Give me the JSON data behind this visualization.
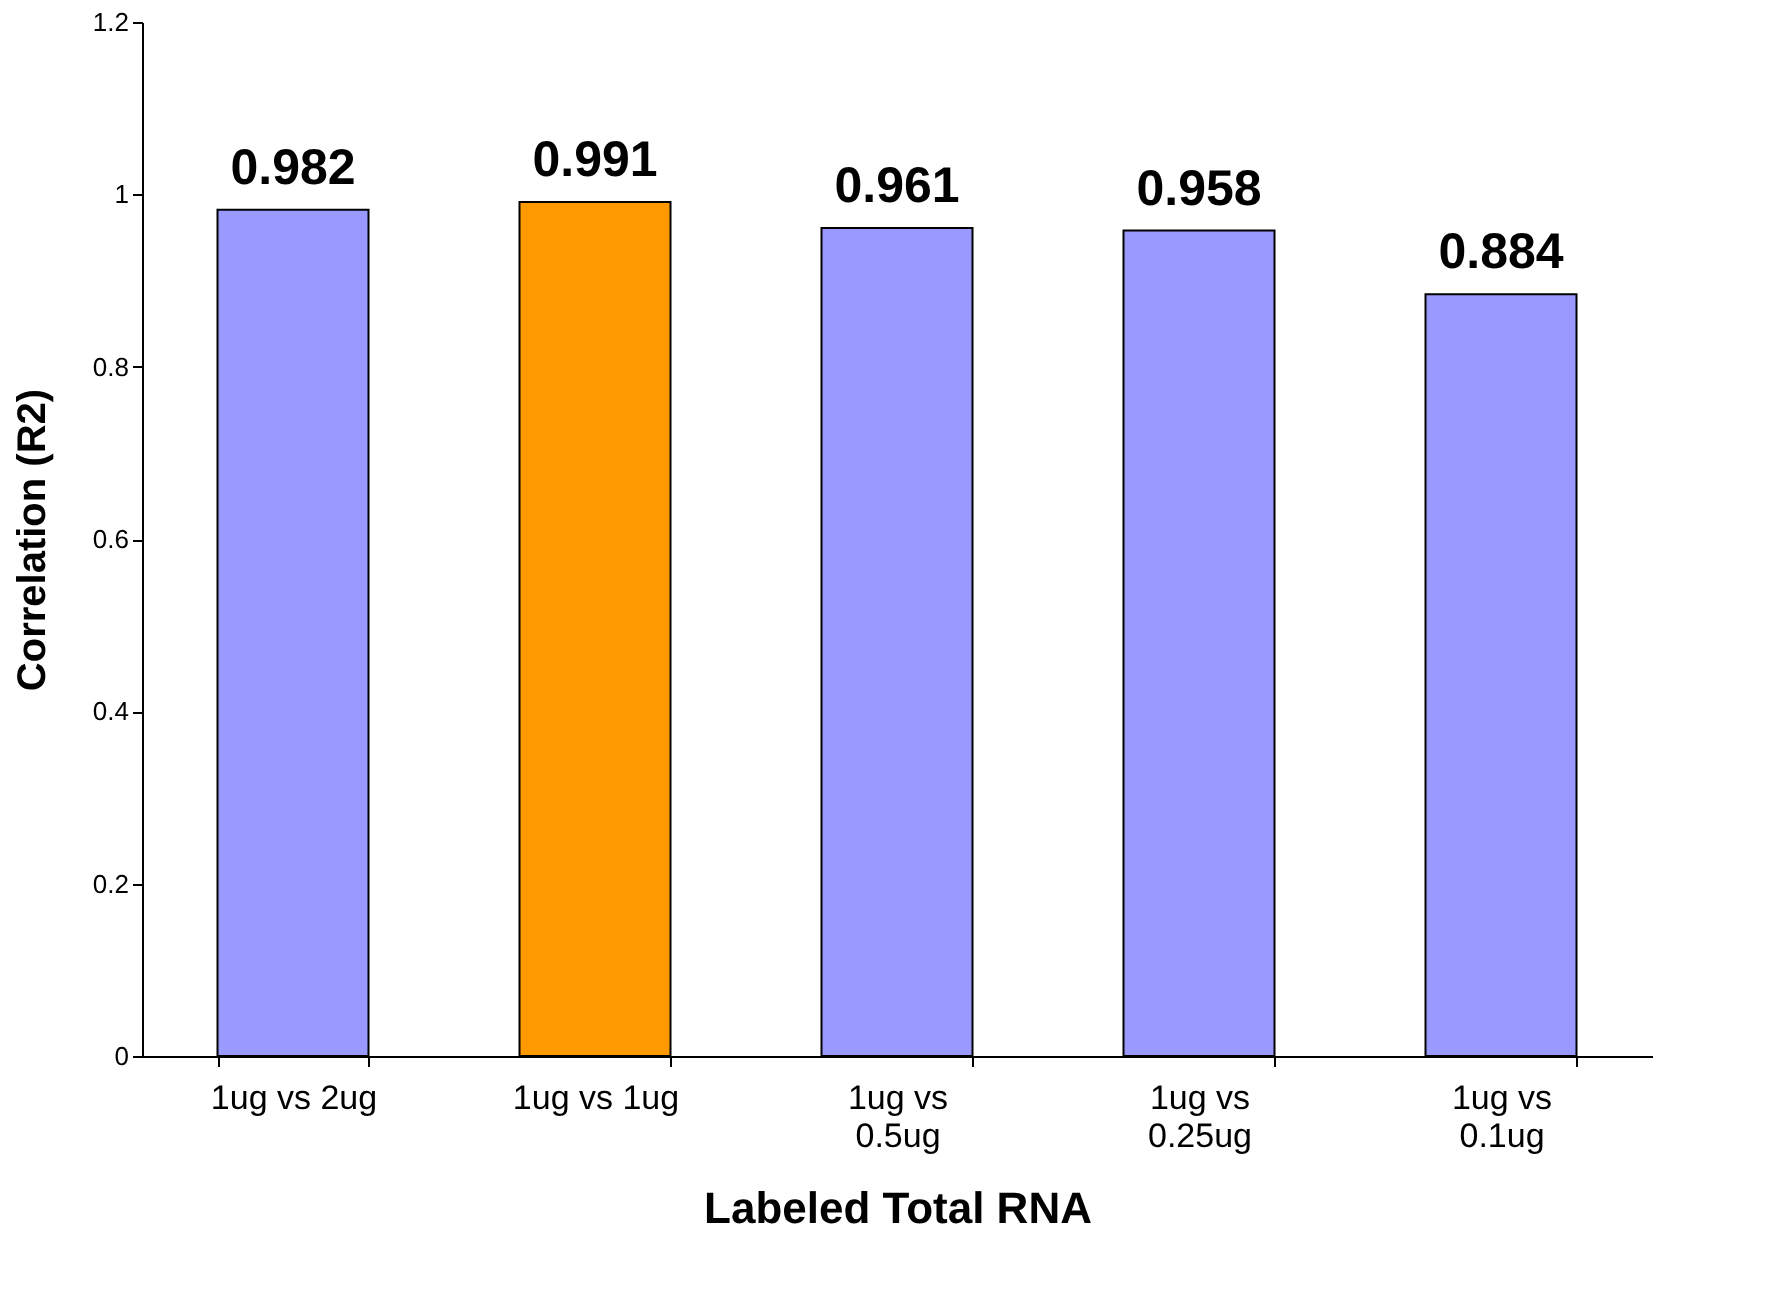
{
  "chart_data": {
    "type": "bar",
    "xlabel": "Labeled Total RNA",
    "ylabel": "Correlation (R2)",
    "categories": [
      "1ug vs 2ug",
      "1ug vs 1ug",
      "1ug vs 0.5ug",
      "1ug vs 0.25ug",
      "1ug vs 0.1ug"
    ],
    "values": [
      0.982,
      0.991,
      0.961,
      0.958,
      0.884
    ],
    "colors": [
      "#9999ff",
      "#ff9900",
      "#9999ff",
      "#9999ff",
      "#9999ff"
    ],
    "ylim": [
      0,
      1.2
    ],
    "yticks": [
      0,
      0.2,
      0.4,
      0.6,
      0.8,
      1,
      1.2
    ],
    "grid": false,
    "data_labels": true
  }
}
